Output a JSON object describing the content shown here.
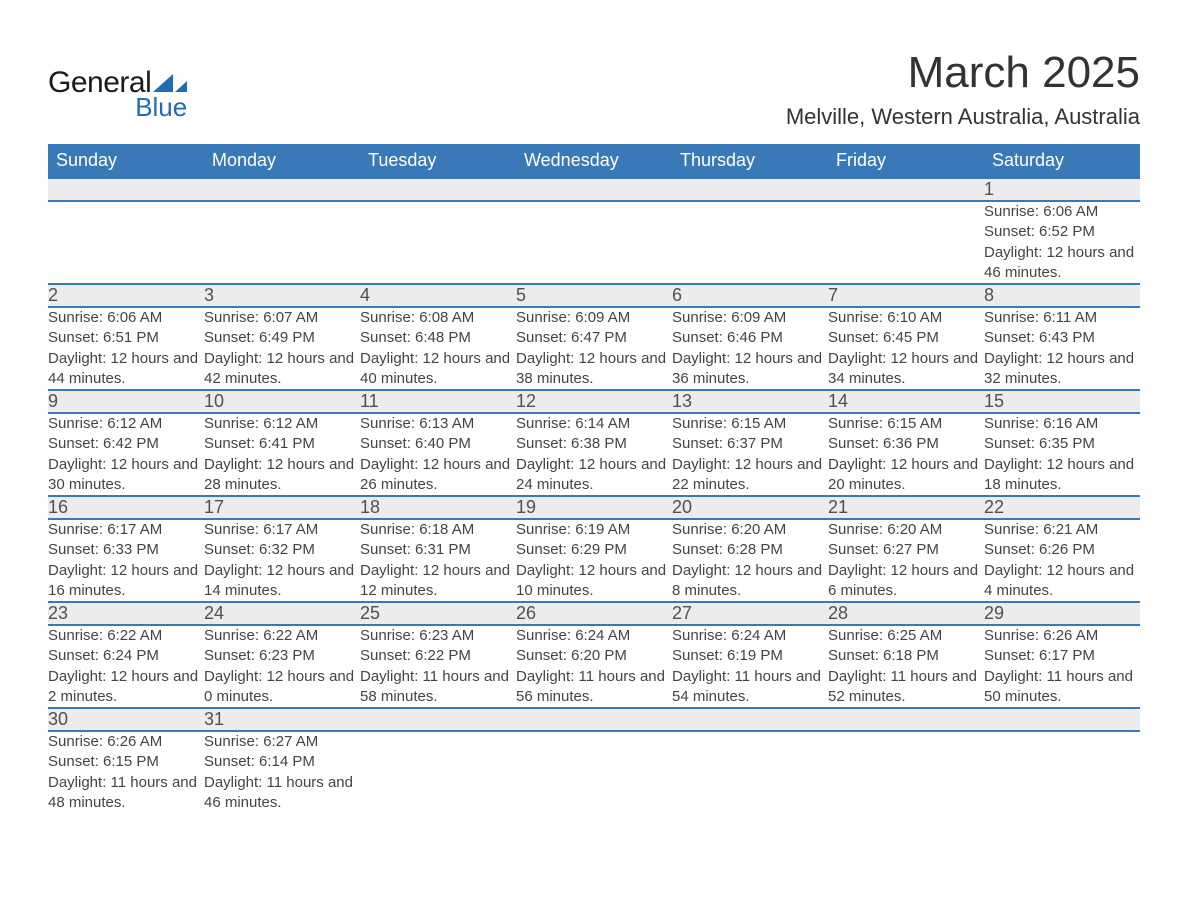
{
  "logo": {
    "text_general": "General",
    "text_blue": "Blue"
  },
  "title": "March 2025",
  "location": "Melville, Western Australia, Australia",
  "colors": {
    "header_bg": "#3a79b7",
    "header_text": "#ffffff",
    "daynum_bg": "#ececec",
    "row_divider": "#3a79b7",
    "body_text": "#444444",
    "title_text": "#333333",
    "logo_blue": "#1f6db5"
  },
  "typography": {
    "title_fontsize": 44,
    "location_fontsize": 22,
    "header_fontsize": 18,
    "daynum_fontsize": 18,
    "detail_fontsize": 15,
    "font_family": "Arial"
  },
  "day_headers": [
    "Sunday",
    "Monday",
    "Tuesday",
    "Wednesday",
    "Thursday",
    "Friday",
    "Saturday"
  ],
  "weeks": [
    [
      null,
      null,
      null,
      null,
      null,
      null,
      {
        "n": "1",
        "sr": "Sunrise: 6:06 AM",
        "ss": "Sunset: 6:52 PM",
        "dl": "Daylight: 12 hours and 46 minutes."
      }
    ],
    [
      {
        "n": "2",
        "sr": "Sunrise: 6:06 AM",
        "ss": "Sunset: 6:51 PM",
        "dl": "Daylight: 12 hours and 44 minutes."
      },
      {
        "n": "3",
        "sr": "Sunrise: 6:07 AM",
        "ss": "Sunset: 6:49 PM",
        "dl": "Daylight: 12 hours and 42 minutes."
      },
      {
        "n": "4",
        "sr": "Sunrise: 6:08 AM",
        "ss": "Sunset: 6:48 PM",
        "dl": "Daylight: 12 hours and 40 minutes."
      },
      {
        "n": "5",
        "sr": "Sunrise: 6:09 AM",
        "ss": "Sunset: 6:47 PM",
        "dl": "Daylight: 12 hours and 38 minutes."
      },
      {
        "n": "6",
        "sr": "Sunrise: 6:09 AM",
        "ss": "Sunset: 6:46 PM",
        "dl": "Daylight: 12 hours and 36 minutes."
      },
      {
        "n": "7",
        "sr": "Sunrise: 6:10 AM",
        "ss": "Sunset: 6:45 PM",
        "dl": "Daylight: 12 hours and 34 minutes."
      },
      {
        "n": "8",
        "sr": "Sunrise: 6:11 AM",
        "ss": "Sunset: 6:43 PM",
        "dl": "Daylight: 12 hours and 32 minutes."
      }
    ],
    [
      {
        "n": "9",
        "sr": "Sunrise: 6:12 AM",
        "ss": "Sunset: 6:42 PM",
        "dl": "Daylight: 12 hours and 30 minutes."
      },
      {
        "n": "10",
        "sr": "Sunrise: 6:12 AM",
        "ss": "Sunset: 6:41 PM",
        "dl": "Daylight: 12 hours and 28 minutes."
      },
      {
        "n": "11",
        "sr": "Sunrise: 6:13 AM",
        "ss": "Sunset: 6:40 PM",
        "dl": "Daylight: 12 hours and 26 minutes."
      },
      {
        "n": "12",
        "sr": "Sunrise: 6:14 AM",
        "ss": "Sunset: 6:38 PM",
        "dl": "Daylight: 12 hours and 24 minutes."
      },
      {
        "n": "13",
        "sr": "Sunrise: 6:15 AM",
        "ss": "Sunset: 6:37 PM",
        "dl": "Daylight: 12 hours and 22 minutes."
      },
      {
        "n": "14",
        "sr": "Sunrise: 6:15 AM",
        "ss": "Sunset: 6:36 PM",
        "dl": "Daylight: 12 hours and 20 minutes."
      },
      {
        "n": "15",
        "sr": "Sunrise: 6:16 AM",
        "ss": "Sunset: 6:35 PM",
        "dl": "Daylight: 12 hours and 18 minutes."
      }
    ],
    [
      {
        "n": "16",
        "sr": "Sunrise: 6:17 AM",
        "ss": "Sunset: 6:33 PM",
        "dl": "Daylight: 12 hours and 16 minutes."
      },
      {
        "n": "17",
        "sr": "Sunrise: 6:17 AM",
        "ss": "Sunset: 6:32 PM",
        "dl": "Daylight: 12 hours and 14 minutes."
      },
      {
        "n": "18",
        "sr": "Sunrise: 6:18 AM",
        "ss": "Sunset: 6:31 PM",
        "dl": "Daylight: 12 hours and 12 minutes."
      },
      {
        "n": "19",
        "sr": "Sunrise: 6:19 AM",
        "ss": "Sunset: 6:29 PM",
        "dl": "Daylight: 12 hours and 10 minutes."
      },
      {
        "n": "20",
        "sr": "Sunrise: 6:20 AM",
        "ss": "Sunset: 6:28 PM",
        "dl": "Daylight: 12 hours and 8 minutes."
      },
      {
        "n": "21",
        "sr": "Sunrise: 6:20 AM",
        "ss": "Sunset: 6:27 PM",
        "dl": "Daylight: 12 hours and 6 minutes."
      },
      {
        "n": "22",
        "sr": "Sunrise: 6:21 AM",
        "ss": "Sunset: 6:26 PM",
        "dl": "Daylight: 12 hours and 4 minutes."
      }
    ],
    [
      {
        "n": "23",
        "sr": "Sunrise: 6:22 AM",
        "ss": "Sunset: 6:24 PM",
        "dl": "Daylight: 12 hours and 2 minutes."
      },
      {
        "n": "24",
        "sr": "Sunrise: 6:22 AM",
        "ss": "Sunset: 6:23 PM",
        "dl": "Daylight: 12 hours and 0 minutes."
      },
      {
        "n": "25",
        "sr": "Sunrise: 6:23 AM",
        "ss": "Sunset: 6:22 PM",
        "dl": "Daylight: 11 hours and 58 minutes."
      },
      {
        "n": "26",
        "sr": "Sunrise: 6:24 AM",
        "ss": "Sunset: 6:20 PM",
        "dl": "Daylight: 11 hours and 56 minutes."
      },
      {
        "n": "27",
        "sr": "Sunrise: 6:24 AM",
        "ss": "Sunset: 6:19 PM",
        "dl": "Daylight: 11 hours and 54 minutes."
      },
      {
        "n": "28",
        "sr": "Sunrise: 6:25 AM",
        "ss": "Sunset: 6:18 PM",
        "dl": "Daylight: 11 hours and 52 minutes."
      },
      {
        "n": "29",
        "sr": "Sunrise: 6:26 AM",
        "ss": "Sunset: 6:17 PM",
        "dl": "Daylight: 11 hours and 50 minutes."
      }
    ],
    [
      {
        "n": "30",
        "sr": "Sunrise: 6:26 AM",
        "ss": "Sunset: 6:15 PM",
        "dl": "Daylight: 11 hours and 48 minutes."
      },
      {
        "n": "31",
        "sr": "Sunrise: 6:27 AM",
        "ss": "Sunset: 6:14 PM",
        "dl": "Daylight: 11 hours and 46 minutes."
      },
      null,
      null,
      null,
      null,
      null
    ]
  ]
}
